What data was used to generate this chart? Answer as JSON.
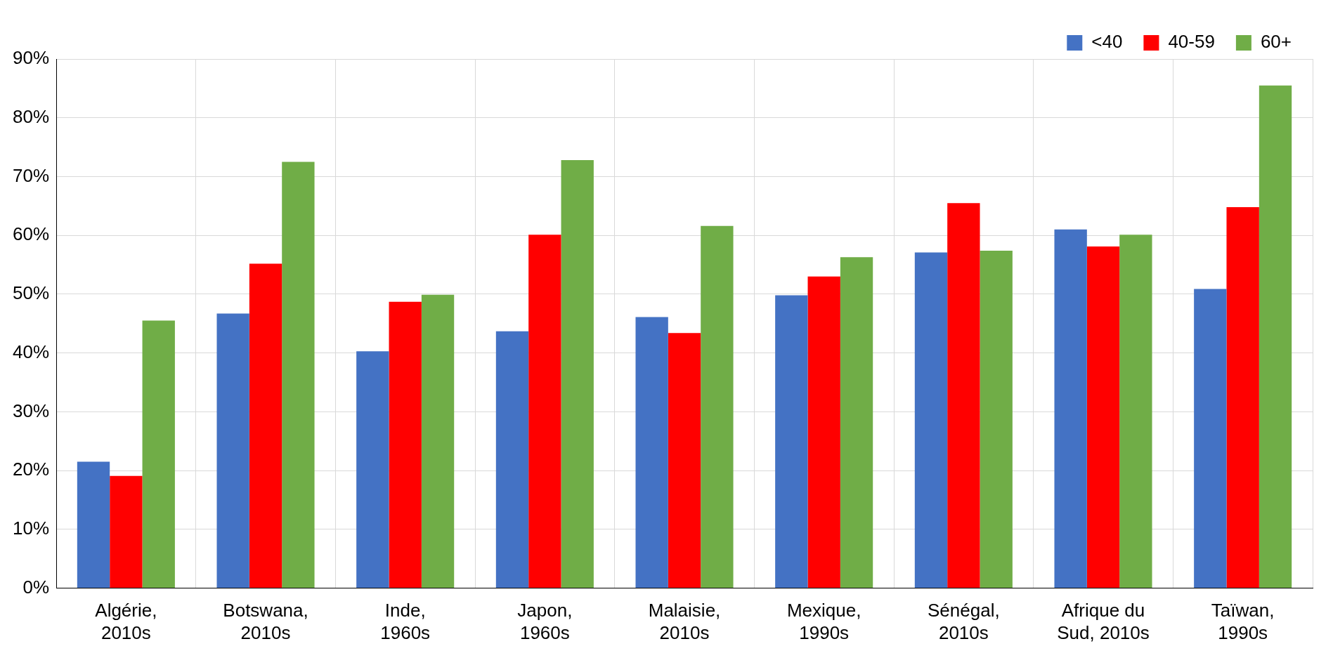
{
  "chart_data": {
    "type": "bar",
    "categories": [
      "Algérie,\n2010s",
      "Botswana,\n2010s",
      "Inde,\n1960s",
      "Japon,\n1960s",
      "Malaisie,\n2010s",
      "Mexique,\n1990s",
      "Sénégal,\n2010s",
      "Afrique du\nSud, 2010s",
      "Taïwan,\n1990s"
    ],
    "series": [
      {
        "name": "<40",
        "color": "#4472c4",
        "values": [
          21.5,
          46.7,
          40.3,
          43.7,
          46.1,
          49.8,
          57.1,
          61.0,
          50.9
        ]
      },
      {
        "name": "40-59",
        "color": "#ff0000",
        "values": [
          19.1,
          55.2,
          48.7,
          60.1,
          43.4,
          53.0,
          65.5,
          58.1,
          64.8
        ]
      },
      {
        "name": "60+",
        "color": "#70ad47",
        "values": [
          45.5,
          72.5,
          49.9,
          72.8,
          61.6,
          56.3,
          57.4,
          60.1,
          85.5
        ]
      }
    ],
    "ylim": [
      0,
      90
    ],
    "yticks": [
      {
        "value": 0,
        "label": "0%"
      },
      {
        "value": 10,
        "label": "10%"
      },
      {
        "value": 20,
        "label": "20%"
      },
      {
        "value": 30,
        "label": "30%"
      },
      {
        "value": 40,
        "label": "40%"
      },
      {
        "value": 50,
        "label": "50%"
      },
      {
        "value": 60,
        "label": "60%"
      },
      {
        "value": 70,
        "label": "70%"
      },
      {
        "value": 80,
        "label": "80%"
      },
      {
        "value": 90,
        "label": "90%"
      }
    ],
    "grid": true,
    "legend": "top right"
  }
}
